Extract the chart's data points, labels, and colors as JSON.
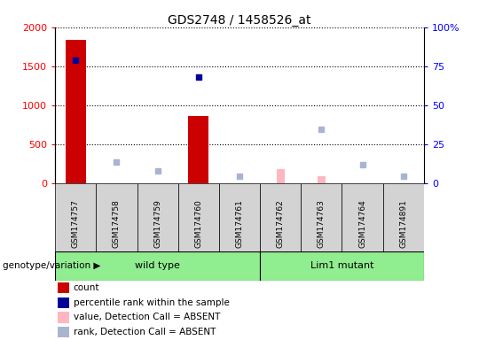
{
  "title": "GDS2748 / 1458526_at",
  "samples": [
    "GSM174757",
    "GSM174758",
    "GSM174759",
    "GSM174760",
    "GSM174761",
    "GSM174762",
    "GSM174763",
    "GSM174764",
    "GSM174891"
  ],
  "count_values": [
    1840,
    null,
    null,
    860,
    null,
    null,
    null,
    null,
    null
  ],
  "rank_values": [
    79,
    null,
    null,
    68,
    null,
    null,
    null,
    null,
    null
  ],
  "value_absent": [
    null,
    null,
    null,
    null,
    null,
    185,
    95,
    null,
    null
  ],
  "rank_absent_vals": [
    null,
    14,
    8,
    null,
    5,
    null,
    35,
    12,
    5
  ],
  "ylim_left": [
    0,
    2000
  ],
  "ylim_right": [
    0,
    100
  ],
  "yticks_left": [
    0,
    500,
    1000,
    1500,
    2000
  ],
  "yticks_right": [
    0,
    25,
    50,
    75,
    100
  ],
  "yticklabels_left": [
    "0",
    "500",
    "1000",
    "1500",
    "2000"
  ],
  "yticklabels_right": [
    "0",
    "25",
    "50",
    "75",
    "100%"
  ],
  "count_color": "#CC0000",
  "rank_color": "#000099",
  "value_absent_color": "#FFB6C1",
  "rank_absent_color": "#A8B4D0",
  "header_bg": "#D3D3D3",
  "wildtype_color": "#90EE90",
  "mutant_color": "#90EE90",
  "groups": [
    {
      "label": "wild type",
      "start": 0,
      "end": 4
    },
    {
      "label": "Lim1 mutant",
      "start": 5,
      "end": 8
    }
  ],
  "legend_items": [
    {
      "color": "#CC0000",
      "label": "count"
    },
    {
      "color": "#000099",
      "label": "percentile rank within the sample"
    },
    {
      "color": "#FFB6C1",
      "label": "value, Detection Call = ABSENT"
    },
    {
      "color": "#A8B4D0",
      "label": "rank, Detection Call = ABSENT"
    }
  ]
}
